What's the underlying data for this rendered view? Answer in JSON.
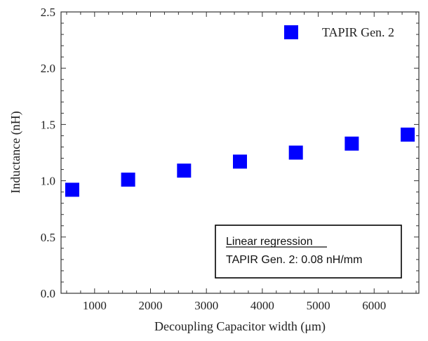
{
  "chart_data": {
    "type": "scatter",
    "xlabel": "Decoupling Capacitor width (μm)",
    "ylabel": "Inductance (nH)",
    "xlim": [
      400,
      6800
    ],
    "ylim": [
      0.0,
      2.5
    ],
    "xticks": [
      1000,
      2000,
      3000,
      4000,
      5000,
      6000
    ],
    "yticks": [
      0.0,
      0.5,
      1.0,
      1.5,
      2.0,
      2.5
    ],
    "xtick_labels": [
      "1000",
      "2000",
      "3000",
      "4000",
      "5000",
      "6000"
    ],
    "ytick_labels": [
      "0.0",
      "0.5",
      "1.0",
      "1.5",
      "2.0",
      "2.5"
    ],
    "grid": false,
    "legend_position": "top-right",
    "series": [
      {
        "name": "TAPIR Gen. 2",
        "color": "#0000ff",
        "marker": "square",
        "x": [
          600,
          1600,
          2600,
          3600,
          4600,
          5600,
          6600
        ],
        "y": [
          0.92,
          1.01,
          1.09,
          1.17,
          1.25,
          1.33,
          1.41
        ]
      }
    ],
    "annotation": {
      "title": "Linear regression",
      "text": "TAPIR Gen. 2: 0.08 nH/mm"
    }
  }
}
